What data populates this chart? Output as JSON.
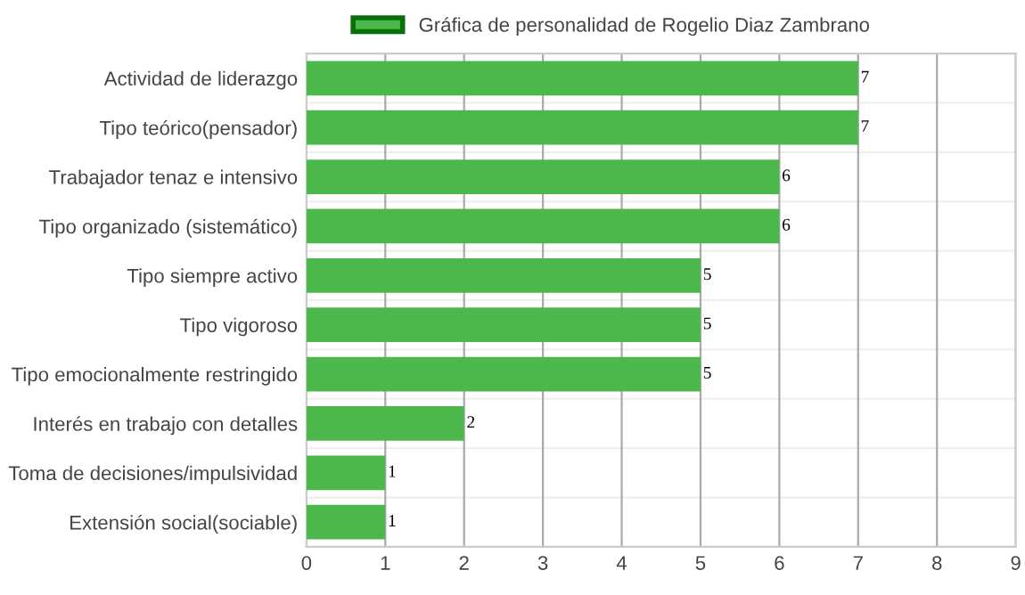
{
  "chart_data": {
    "type": "bar",
    "orientation": "horizontal",
    "categories": [
      "Actividad de liderazgo",
      "Tipo teórico(pensador)",
      "Trabajador tenaz e intensivo",
      "Tipo organizado (sistemático)",
      "Tipo siempre activo",
      "Tipo vigoroso",
      "Tipo emocionalmente restringido",
      "Interés en trabajo con detalles",
      "Toma de decisiones/impulsividad",
      "Extensión social(sociable)"
    ],
    "series": [
      {
        "name": "Gráfica de personalidad de Rogelio Diaz Zambrano",
        "color": "#4cb84c",
        "values": [
          7,
          7,
          6,
          6,
          5,
          5,
          5,
          2,
          1,
          1
        ]
      }
    ],
    "xlim": [
      0,
      9
    ],
    "xticks": [
      0,
      1,
      2,
      3,
      4,
      5,
      6,
      7,
      8,
      9
    ],
    "grid": "x",
    "legend": "top",
    "data_labels": true
  }
}
